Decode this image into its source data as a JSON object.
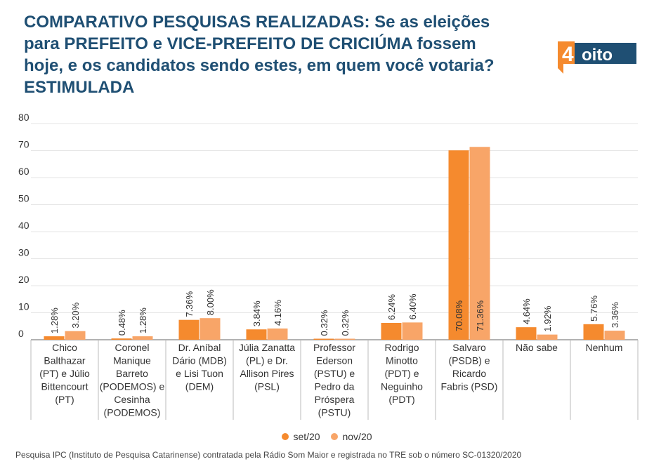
{
  "header": {
    "title_lines": [
      "COMPARATIVO PESQUISAS REALIZADAS: Se as eleições",
      "para PREFEITO e VICE-PREFEITO DE CRICIÚMA fossem",
      "hoje, e os candidatos sendo estes, em quem você votaria?",
      "ESTIMULADA"
    ],
    "logo_text": "4oito"
  },
  "colors": {
    "title": "#1f4f73",
    "series_1": "#f58a2e",
    "series_2": "#f8a568",
    "logo_bg": "#1f4f73",
    "logo_accent": "#f58a2e",
    "grid": "#e6e6e6"
  },
  "chart_data": {
    "type": "bar",
    "ylim": [
      0,
      80
    ],
    "yticks": [
      0,
      10,
      20,
      30,
      40,
      50,
      60,
      70,
      80
    ],
    "grid": true,
    "legend_position": "bottom",
    "categories": [
      [
        "Chico",
        "Balthazar",
        "(PT) e Júlio",
        "Bittencourt",
        "(PT)"
      ],
      [
        "Coronel",
        "Manique",
        "Barreto",
        "(PODEMOS) e",
        "Cesinha",
        "(PODEMOS)"
      ],
      [
        "Dr. Aníbal",
        "Dário (MDB)",
        "e Lisi Tuon",
        "(DEM)"
      ],
      [
        "Júlia Zanatta",
        "(PL) e Dr.",
        "Allison Pires",
        "(PSL)"
      ],
      [
        "Professor",
        "Ederson",
        "(PSTU) e",
        "Pedro da",
        "Próspera",
        "(PSTU)"
      ],
      [
        "Rodrigo",
        "Minotto",
        "(PDT) e",
        "Neguinho",
        "(PDT)"
      ],
      [
        "Salvaro",
        "(PSDB) e",
        "Ricardo",
        "Fabris (PSD)"
      ],
      [
        "Não sabe"
      ],
      [
        "Nenhum"
      ]
    ],
    "series": [
      {
        "name": "set/20",
        "values": [
          1.28,
          0.48,
          7.36,
          3.84,
          0.32,
          6.24,
          70.08,
          4.64,
          5.76
        ],
        "labels": [
          "1.28%",
          "0.48%",
          "7.36%",
          "3.84%",
          "0.32%",
          "6.24%",
          "70.08%",
          "4.64%",
          "5.76%"
        ]
      },
      {
        "name": "nov/20",
        "values": [
          3.2,
          1.28,
          8.0,
          4.16,
          0.32,
          6.4,
          71.36,
          1.92,
          3.36
        ],
        "labels": [
          "3.20%",
          "1.28%",
          "8.00%",
          "4.16%",
          "0.32%",
          "6.40%",
          "71.36%",
          "1.92%",
          "3.36%"
        ]
      }
    ]
  },
  "footer": {
    "source": "Pesquisa IPC (Instituto de Pesquisa Catarinense) contratada pela Rádio Som Maior e registrada no TRE sob o número SC-01320/2020"
  }
}
